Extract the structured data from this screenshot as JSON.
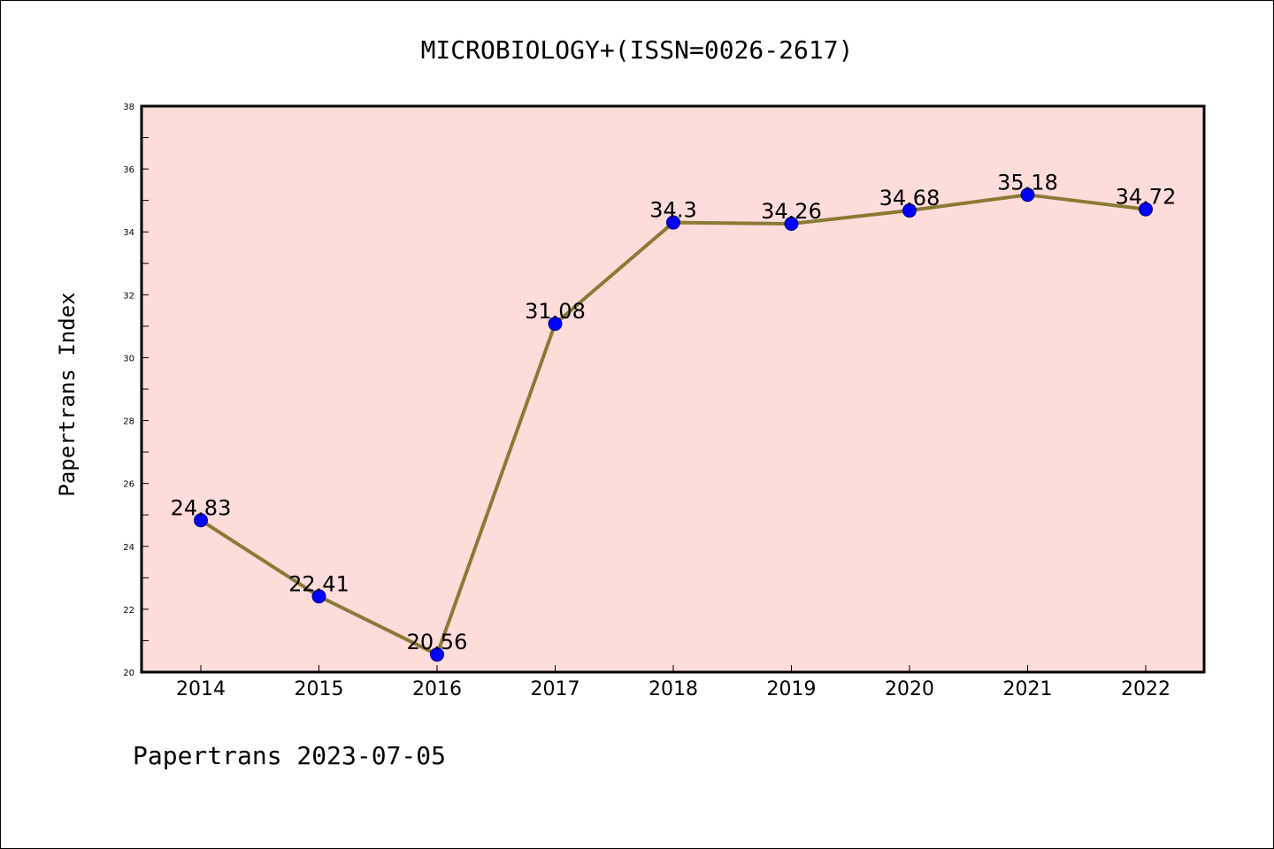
{
  "chart_data": {
    "type": "line",
    "title": "MICROBIOLOGY+(ISSN=0026-2617)",
    "ylabel": "Papertrans Index",
    "xlabel": "",
    "categories": [
      "2014",
      "2015",
      "2016",
      "2017",
      "2018",
      "2019",
      "2020",
      "2021",
      "2022"
    ],
    "series": [
      {
        "values": [
          24.83,
          22.41,
          20.56,
          31.08,
          34.3,
          34.26,
          34.68,
          35.18,
          34.72
        ],
        "labels": [
          "24.83",
          "22.41",
          "20.56",
          "31.08",
          "34.3",
          "34.26",
          "34.68",
          "35.18",
          "34.72"
        ]
      }
    ],
    "ylim": [
      20,
      38
    ],
    "yticks": [
      20,
      22,
      24,
      26,
      28,
      30,
      32,
      34,
      36,
      38
    ],
    "grid": false,
    "legend": "none",
    "colors": {
      "plot_background": "#fddcda",
      "line": "#8b7a35",
      "marker_fill": "#0000ff",
      "marker_edge": "#000080"
    }
  },
  "footer": {
    "text": "Papertrans 2023-07-05"
  }
}
